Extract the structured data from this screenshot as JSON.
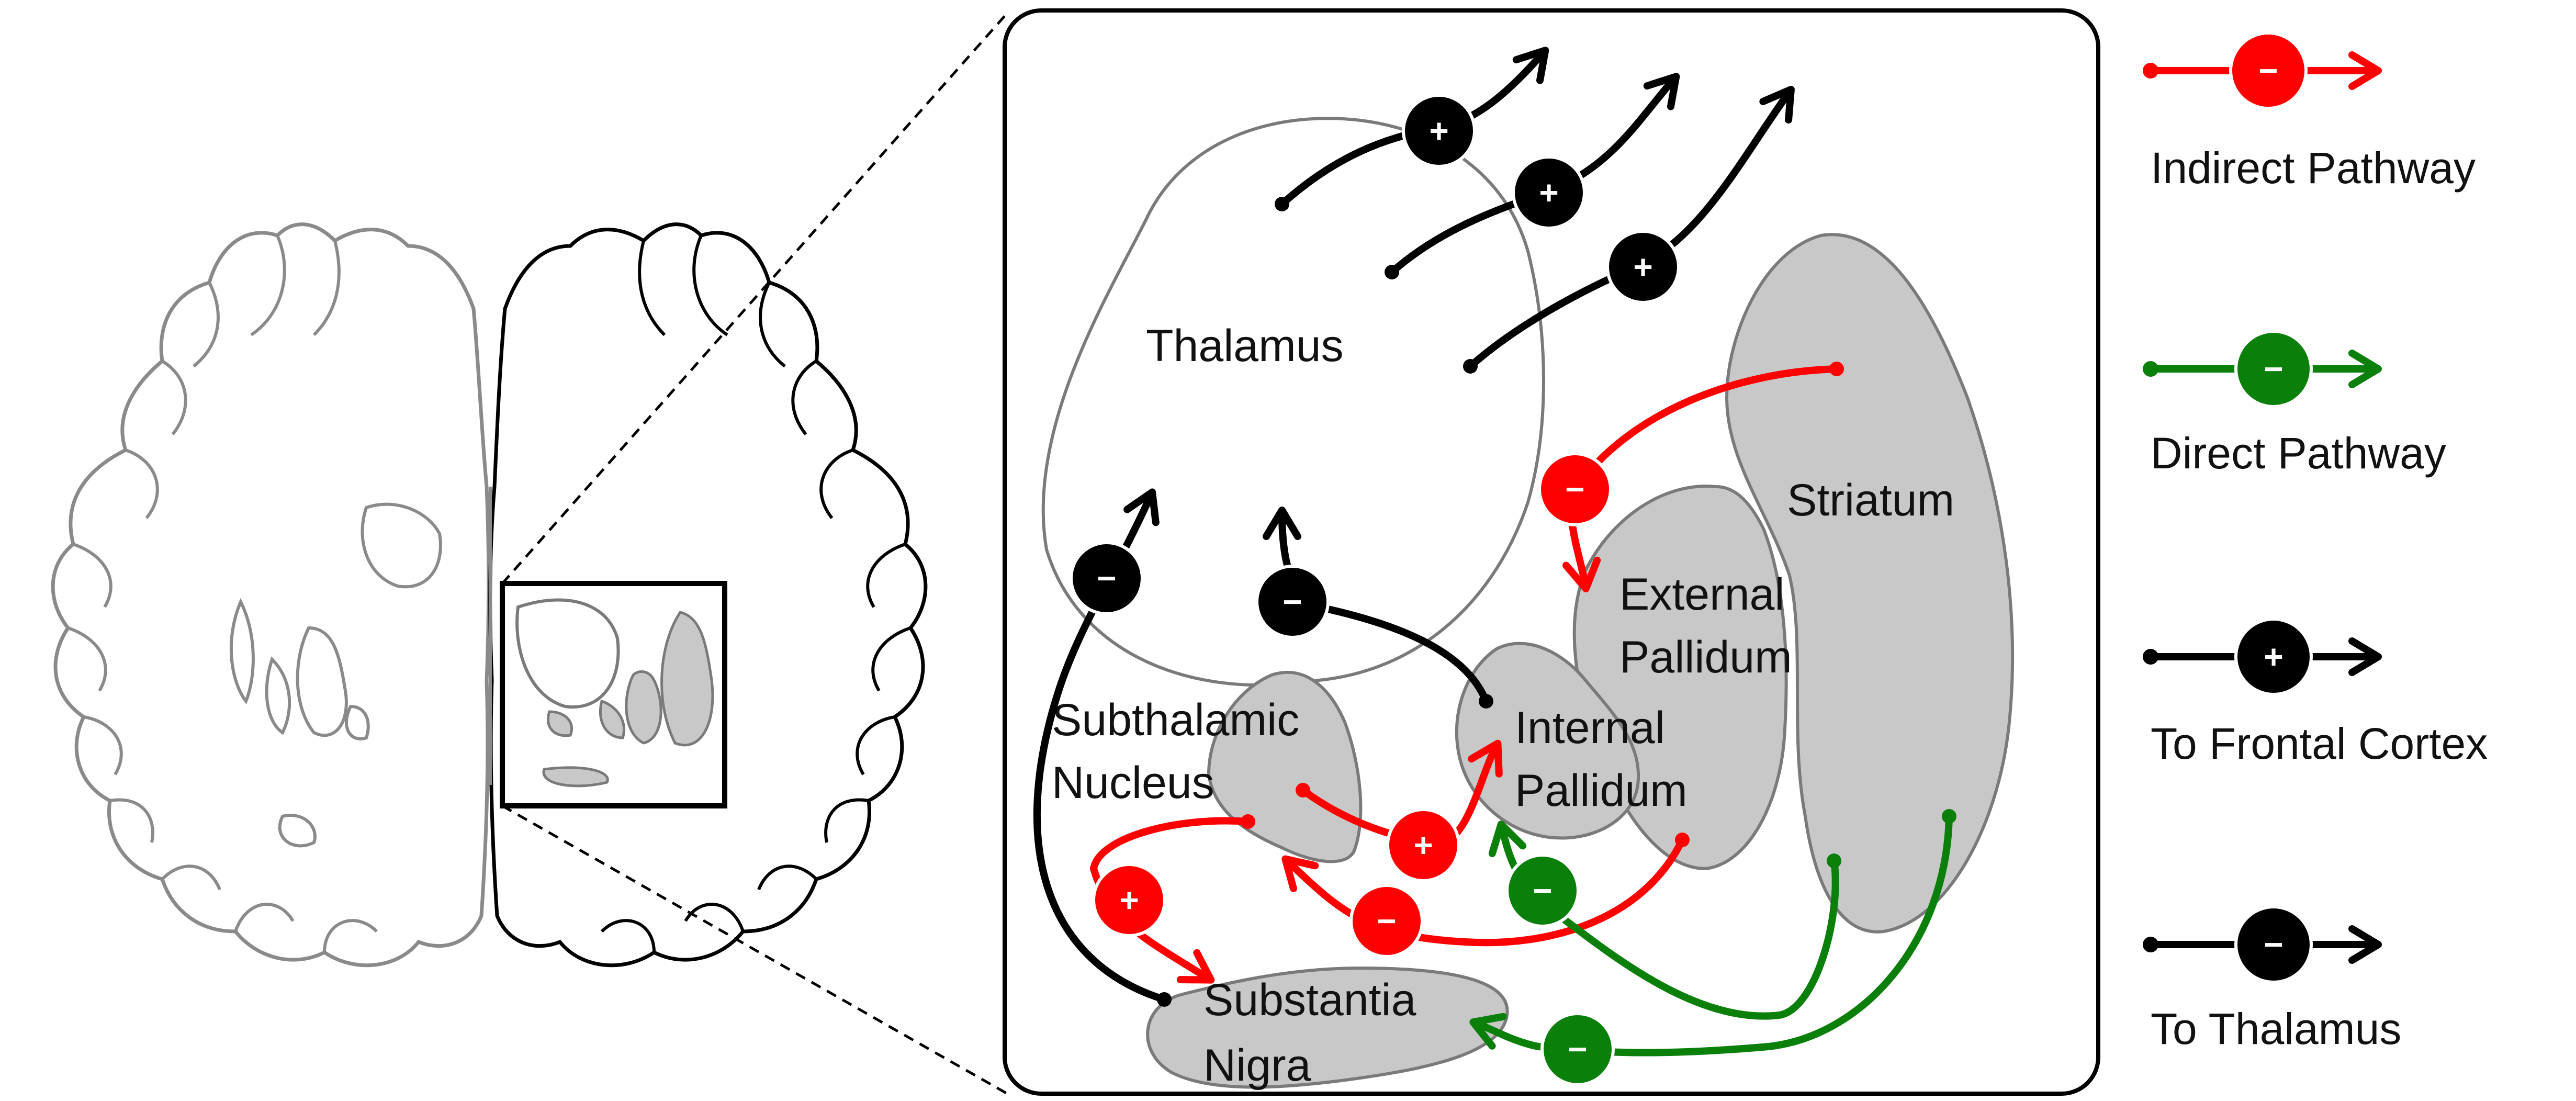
{
  "colors": {
    "indirect": "#ff0000",
    "direct": "#0a7f0a",
    "frontal": "#000000",
    "thalamus": "#000000",
    "region_fill": "#c8c8c8",
    "region_stroke": "#7a7a7a"
  },
  "regions": {
    "thalamus": "Thalamus",
    "striatum": "Striatum",
    "external_pallidum": [
      "External",
      "Pallidum"
    ],
    "internal_pallidum": [
      "Internal",
      "Pallidum"
    ],
    "subthalamic_nucleus": [
      "Subthalamic",
      "Nucleus"
    ],
    "substantia_nigra": [
      "Substantia",
      "Nigra"
    ]
  },
  "signs": {
    "plus": "+",
    "minus": "−"
  },
  "legend": [
    {
      "label": "Indirect Pathway",
      "sign": "−",
      "color_key": "indirect"
    },
    {
      "label": "Direct Pathway",
      "sign": "−",
      "color_key": "direct"
    },
    {
      "label": "To Frontal Cortex",
      "sign": "+",
      "color_key": "frontal"
    },
    {
      "label": "To Thalamus",
      "sign": "−",
      "color_key": "thalamus"
    }
  ]
}
